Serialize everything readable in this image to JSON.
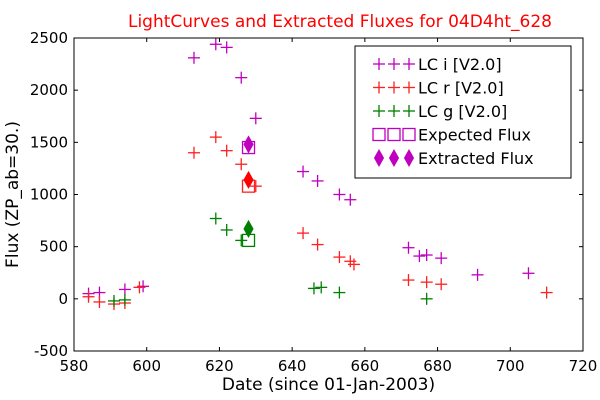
{
  "chart_data": {
    "type": "scatter",
    "title": "LightCurves and Extracted Fluxes for 04D4ht_628",
    "xlabel": "Date (since 01-Jan-2003)",
    "ylabel": "Flux (ZP_ab=30.)",
    "xlim": [
      580,
      720
    ],
    "ylim": [
      -500,
      2500
    ],
    "xticks": [
      580,
      600,
      620,
      640,
      660,
      680,
      700,
      720
    ],
    "yticks": [
      -500,
      0,
      500,
      1000,
      1500,
      2000,
      2500
    ],
    "grid": false,
    "legend_position": "top-right",
    "series": [
      {
        "name": "LC i [V2.0]",
        "marker": "plus",
        "color": "#bf00bf",
        "points": [
          [
            584,
            50
          ],
          [
            587,
            60
          ],
          [
            594,
            90
          ],
          [
            599,
            120
          ],
          [
            613,
            2310
          ],
          [
            619,
            2440
          ],
          [
            622,
            2410
          ],
          [
            626,
            2120
          ],
          [
            630,
            1730
          ],
          [
            643,
            1220
          ],
          [
            647,
            1130
          ],
          [
            653,
            1000
          ],
          [
            656,
            950
          ],
          [
            672,
            490
          ],
          [
            675,
            410
          ],
          [
            677,
            420
          ],
          [
            681,
            390
          ],
          [
            691,
            230
          ],
          [
            705,
            245
          ]
        ]
      },
      {
        "name": "LC r [V2.0]",
        "marker": "plus",
        "color": "#ff2020",
        "points": [
          [
            584,
            20
          ],
          [
            587,
            -30
          ],
          [
            591,
            -50
          ],
          [
            594,
            -40
          ],
          [
            598,
            110
          ],
          [
            613,
            1400
          ],
          [
            619,
            1550
          ],
          [
            622,
            1420
          ],
          [
            626,
            1290
          ],
          [
            630,
            1080
          ],
          [
            643,
            630
          ],
          [
            647,
            520
          ],
          [
            653,
            400
          ],
          [
            656,
            360
          ],
          [
            657,
            330
          ],
          [
            672,
            180
          ],
          [
            677,
            160
          ],
          [
            681,
            140
          ],
          [
            710,
            60
          ]
        ]
      },
      {
        "name": "LC g [V2.0]",
        "marker": "plus",
        "color": "#008000",
        "points": [
          [
            591,
            -20
          ],
          [
            594,
            -10
          ],
          [
            619,
            770
          ],
          [
            622,
            660
          ],
          [
            626,
            560
          ],
          [
            646,
            100
          ],
          [
            648,
            110
          ],
          [
            653,
            60
          ],
          [
            677,
            0
          ]
        ]
      },
      {
        "name": "Expected Flux",
        "marker": "square",
        "colors": [
          "#bf00bf",
          "#ff2020",
          "#008000"
        ],
        "points": [
          [
            628,
            1450
          ],
          [
            628,
            1080
          ],
          [
            628,
            560
          ]
        ]
      },
      {
        "name": "Extracted Flux",
        "marker": "diamond",
        "colors": [
          "#bf00bf",
          "#ff0000",
          "#008000"
        ],
        "points": [
          [
            628,
            1480
          ],
          [
            628,
            1140
          ],
          [
            628,
            670
          ]
        ]
      }
    ]
  }
}
